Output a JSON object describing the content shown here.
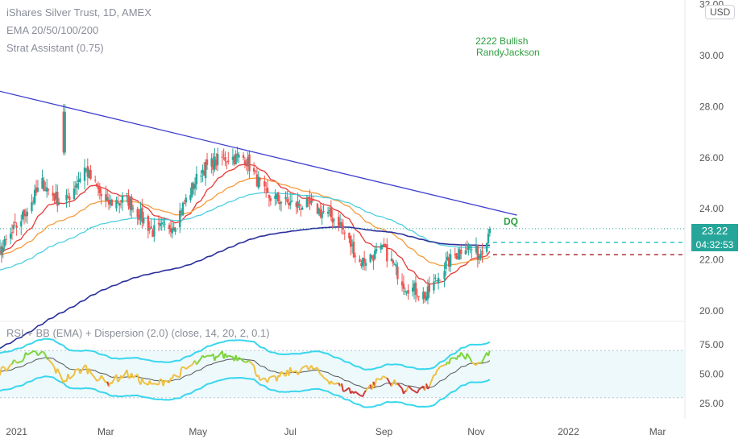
{
  "header": {
    "symbol_line": "iShares Silver Trust, 1D, AMEX",
    "indicator_1": "EMA 20/50/100/200",
    "indicator_2": "Strat Assistant (0.75)",
    "currency_button": "USD"
  },
  "pane2": {
    "title": "RSI + BB (EMA) + Dispersion (2.0) (close, 14, 20, 2, 0.1)"
  },
  "last_price": {
    "price": "23.22",
    "countdown": "04:32:53"
  },
  "annotations": {
    "signal_line1": "2222 Bullish",
    "signal_line2": "RandyJackson",
    "dq_label": "DQ"
  },
  "colors": {
    "up": "#26a69a",
    "down": "#ef5350",
    "trendline": "#3f3fd0",
    "ema20": "#e53935",
    "ema50": "#f59b3c",
    "ema100": "#4dd0e1",
    "ema200": "#2a2f9c",
    "bb": "#3ad6ee",
    "rsi_mid": "#555555",
    "signal": "#2e9e3f"
  },
  "chart_data": [
    {
      "type": "candlestick",
      "x": [
        "2020-12-21",
        "2021-01-04",
        "2021-01-18",
        "2021-02-01",
        "2021-02-15",
        "2021-03-01",
        "2021-03-15",
        "2021-04-01",
        "2021-04-15",
        "2021-05-03",
        "2021-05-17",
        "2021-06-01",
        "2021-06-15",
        "2021-07-01",
        "2021-07-15",
        "2021-08-02",
        "2021-08-16",
        "2021-09-01",
        "2021-09-15",
        "2021-09-29",
        "2021-10-12",
        "2021-10-25",
        "2021-11-03",
        "2021-11-10"
      ],
      "y": [
        22.3,
        23.6,
        25.0,
        24.1,
        25.6,
        24.2,
        24.4,
        23.1,
        23.4,
        25.5,
        26.0,
        26.0,
        24.5,
        24.2,
        24.1,
        23.5,
        21.9,
        22.4,
        21.0,
        20.6,
        21.8,
        22.6,
        22.2,
        23.22
      ],
      "x_tick_labels": [
        "2021",
        "Mar",
        "May",
        "Jul",
        "Sep",
        "Nov",
        "2022",
        "Mar"
      ],
      "y_tick_labels": [
        "20.00",
        "22.00",
        "24.00",
        "26.00",
        "28.00",
        "30.00",
        "32.00"
      ],
      "ylim": [
        19.5,
        32.5
      ],
      "grid": false
    },
    {
      "type": "line",
      "title": "RSI + BB (EMA) + Dispersion (2.0) (close, 14, 20, 2, 0.1)",
      "x": [
        "2020-12-21",
        "2021-01-04",
        "2021-01-18",
        "2021-02-01",
        "2021-02-15",
        "2021-03-01",
        "2021-03-15",
        "2021-04-01",
        "2021-04-15",
        "2021-05-03",
        "2021-05-17",
        "2021-06-01",
        "2021-06-15",
        "2021-07-01",
        "2021-07-15",
        "2021-08-02",
        "2021-08-16",
        "2021-09-01",
        "2021-09-15",
        "2021-09-29",
        "2021-10-12",
        "2021-10-25",
        "2021-11-03",
        "2021-11-10"
      ],
      "y": [
        52,
        64,
        68,
        45,
        56,
        42,
        50,
        40,
        48,
        62,
        66,
        64,
        42,
        52,
        55,
        40,
        32,
        48,
        36,
        38,
        60,
        66,
        56,
        70
      ],
      "y_tick_labels": [
        "25.00",
        "50.00",
        "75.00"
      ],
      "ylim": [
        20,
        80
      ]
    }
  ]
}
